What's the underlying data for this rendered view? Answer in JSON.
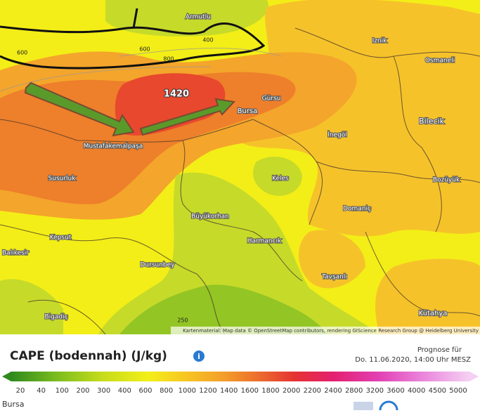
{
  "map": {
    "places": [
      "Armutlu",
      "Iznik",
      "Osmaneli",
      "Gürsu",
      "Bursa",
      "Mustafakemalpaşa",
      "İnegöl",
      "Bilecik",
      "Susurluk",
      "Keles",
      "Bozüyük",
      "Domaniç",
      "Büyükorhan",
      "Kepsut",
      "Harmancık",
      "Balıkesir",
      "Dursunbey",
      "Tavşanlı",
      "Bigadiç",
      "Kütahya"
    ],
    "contour_labels": [
      600,
      600,
      800,
      400,
      250
    ],
    "peak_label": 1420,
    "attribution": "Kartenmaterial: Map data © OpenStreetMap contributors, rendering GIScience Research Group @ Heidelberg University"
  },
  "legend": {
    "title": "CAPE (bodennah) (J/kg)",
    "forecast_label": "Prognose für",
    "forecast_time": "Do. 11.06.2020, 14:00 Uhr MESZ",
    "scale": [
      20,
      40,
      100,
      200,
      300,
      400,
      600,
      800,
      1000,
      1200,
      1400,
      1600,
      1800,
      2000,
      2200,
      2400,
      2800,
      3200,
      3600,
      4000,
      4500,
      5000
    ],
    "location": "Bursa"
  }
}
